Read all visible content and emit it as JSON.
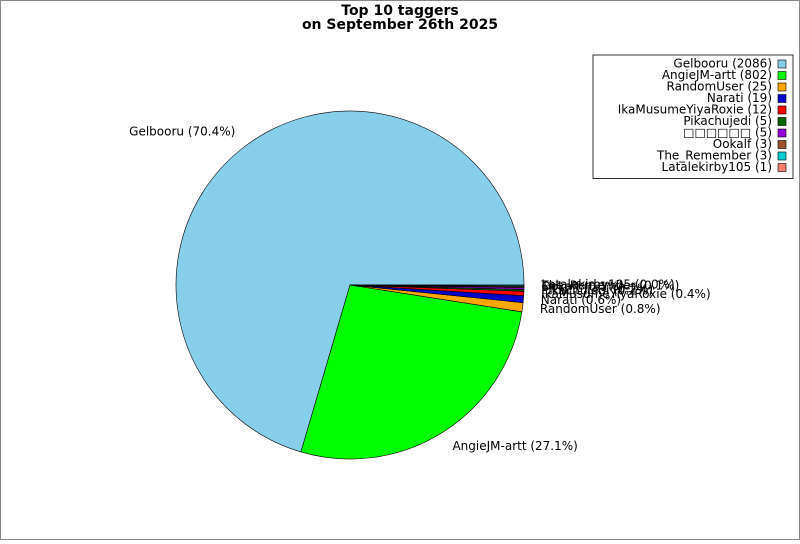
{
  "chart_data": {
    "type": "pie",
    "title": "Top 10 taggers",
    "subtitle": "on September 26th 2025",
    "categories": [
      "Gelbooru",
      "AngieJM-artt",
      "RandomUser",
      "Narati",
      "IkaMusumeYiyaRoxie",
      "Pikachujedi",
      "□□□□□□",
      "Ookalf",
      "The_Remember",
      "Latalekirby105"
    ],
    "values": [
      2086,
      802,
      25,
      19,
      12,
      5,
      5,
      3,
      3,
      1
    ],
    "legend_labels": [
      "Gelbooru (2086)",
      "AngieJM-artt (802)",
      "RandomUser (25)",
      "Narati (19)",
      "IkaMusumeYiyaRoxie (12)",
      "Pikachujedi (5)",
      "□□□□□□ (5)",
      "Ookalf (3)",
      "The_Remember (3)",
      "Latalekirby105 (1)"
    ],
    "value_labels": [
      "Gelbooru (70.4%)",
      "AngieJM-artt (27.1%)",
      "RandomUser (0.8%)",
      "Narati (0.6%)",
      "IkaMusumeYiyaRoxie (0.4%)",
      "Pikachujedi (0.2%)",
      "□□□□□□ (0.2%)",
      "Ookalf (0.1%)",
      "The_Remember (0.1%)",
      "Latalekirby105 (0.0%)"
    ],
    "colors": [
      "#87ceeb",
      "#00ff00",
      "#ffa500",
      "#0000cd",
      "#ff0000",
      "#006400",
      "#9400d3",
      "#a0522d",
      "#00ced1",
      "#fa8072"
    ],
    "start_angle": 0,
    "legend": "upper right"
  }
}
